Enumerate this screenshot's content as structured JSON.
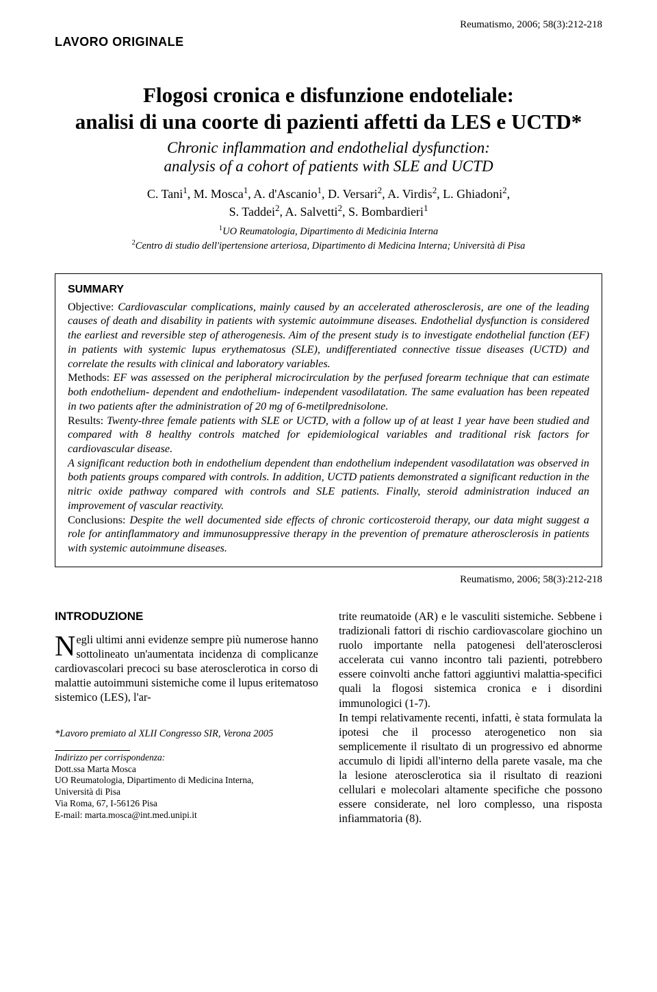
{
  "header": {
    "citation_top": "Reumatismo, 2006; 58(3):212-218",
    "section_label": "LAVORO ORIGINALE"
  },
  "title": {
    "main_line1": "Flogosi cronica e disfunzione endoteliale:",
    "main_line2": "analisi di una coorte di pazienti affetti da LES e UCTD*",
    "sub_line1": "Chronic inflammation and endothelial dysfunction:",
    "sub_line2": "analysis of a cohort of patients with SLE and UCTD"
  },
  "authors_html": "C. Tani<sup>1</sup>, M. Mosca<sup>1</sup>, A. d'Ascanio<sup>1</sup>, D. Versari<sup>2</sup>, A. Virdis<sup>2</sup>, L. Ghiadoni<sup>2</sup>,<br>S. Taddei<sup>2</sup>, A. Salvetti<sup>2</sup>, S. Bombardieri<sup>1</sup>",
  "affiliations_html": "<sup>1</sup>UO Reumatologia, Dipartimento di Medicinia Interna<br><sup>2</sup>Centro di studio dell'ipertensione arteriosa, Dipartimento di Medicina Interna; Università di Pisa",
  "summary": {
    "heading": "SUMMARY",
    "objective_label": "Objective: ",
    "objective_text": "Cardiovascular complications, mainly caused by an accelerated atherosclerosis, are one of the leading causes of death and disability in patients with systemic autoimmune diseases. Endothelial dysfunction is considered the earliest and reversible step of atherogenesis. Aim of the present study is to investigate endothelial function (EF) in patients with systemic lupus erythematosus (SLE), undifferentiated connective tissue diseases (UCTD) and correlate the results with clinical and laboratory variables.",
    "methods_label": "Methods: ",
    "methods_text": "EF was assessed on the peripheral microcirculation by the perfused forearm technique that can estimate both endothelium- dependent and endothelium- independent vasodilatation. The same evaluation has been repeated in two patients after the administration of 20 mg of 6-metilprednisolone.",
    "results_label": "Results: ",
    "results_text1": "Twenty-three female patients with SLE or UCTD, with a follow up of at least 1 year have been studied and compared with 8 healthy controls matched for epidemiological variables and traditional risk factors for cardiovascular disease.",
    "results_text2": "A significant reduction both in endothelium dependent than endothelium independent vasodilatation was observed in both patients groups compared with controls. In addition, UCTD patients demonstrated a significant reduction in the nitric oxide pathway compared with controls and SLE patients. Finally, steroid administration induced an improvement of vascular reactivity.",
    "conclusions_label": "Conclusions: ",
    "conclusions_text": "Despite the well documented side effects of chronic corticosteroid therapy, our data might suggest a role for antinflammatory and immunosuppressive therapy in the prevention of premature atherosclerosis in patients with systemic autoimmune diseases."
  },
  "citation_bottom": "Reumatismo, 2006; 58(3):212-218",
  "body": {
    "intro_heading": "INTRODUZIONE",
    "col1_dropcap": "N",
    "col1_text": "egli ultimi anni evidenze sempre più numerose hanno sottolineato un'aumentata incidenza di complicanze cardiovascolari precoci su base aterosclerotica in corso di malattie autoimmuni sistemiche come il lupus eritematoso sistemico (LES), l'ar-",
    "footnote": "*Lavoro premiato al XLII Congresso SIR, Verona 2005",
    "corr_label": "Indirizzo per corrispondenza:",
    "corr_l1": "Dott.ssa Marta Mosca",
    "corr_l2": "UO Reumatologia, Dipartimento di Medicina Interna,",
    "corr_l3": "Università di Pisa",
    "corr_l4": "Via Roma, 67, I-56126 Pisa",
    "corr_l5": "E-mail: marta.mosca@int.med.unipi.it",
    "col2_text1": "trite reumatoide (AR) e le vasculiti sistemiche. Sebbene i tradizionali fattori di rischio cardiovascolare giochino un ruolo importante nella patogenesi dell'aterosclerosi accelerata cui vanno incontro tali pazienti, potrebbero essere coinvolti anche fattori aggiuntivi malattia-specifici quali la flogosi sistemica cronica e i disordini immunologici (1-7).",
    "col2_text2": "In tempi relativamente recenti, infatti, è stata formulata la ipotesi che il processo aterogenetico non sia semplicemente il risultato di un progressivo ed abnorme accumulo di lipidi all'interno della parete vasale, ma che la lesione aterosclerotica sia il risultato di reazioni cellulari e molecolari altamente specifiche che possono essere considerate, nel loro complesso, una risposta infiammatoria (8)."
  },
  "style": {
    "page_bg": "#ffffff",
    "text_color": "#000000",
    "border_color": "#000000",
    "font_serif": "Times New Roman",
    "font_sans": "Arial"
  }
}
